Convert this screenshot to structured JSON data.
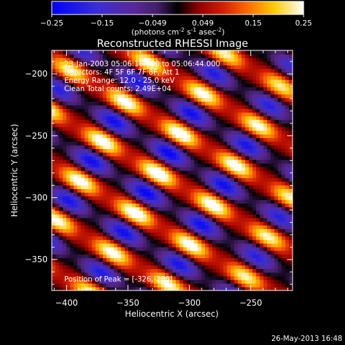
{
  "colorbar": {
    "ticks": [
      "-0.25",
      "-0.15",
      "-0.049",
      "0.049",
      "0.15",
      "0.25"
    ],
    "vmin": -0.25,
    "vmax": 0.25,
    "unit_parts": [
      "(photons cm",
      "-2",
      " s",
      "-1",
      " asec",
      "-2",
      ")"
    ]
  },
  "title": "Reconstructed RHESSI Image",
  "info_lines": [
    "23-Jan-2003 05:06:16.000 to 05:06:44.000",
    "Detectors: 4F 5F 6F 7F 8F, Att 1",
    "Energy Range: 12.0 - 25.0 keV",
    "Clean     Total counts: 2.49E+04"
  ],
  "peak_text": "Position of Peak = [-326,-280]",
  "timestamp": "26-May-2013 16:48",
  "chart_data": {
    "type": "heatmap",
    "title": "Reconstructed RHESSI Image",
    "xlabel": "Heliocentric X (arcsec)",
    "ylabel": "Heliocentric Y (arcsec)",
    "xlim": [
      -412,
      -216
    ],
    "ylim": [
      -375,
      -181
    ],
    "xticks": [
      -400,
      -350,
      -300,
      -250
    ],
    "yticks": [
      -350,
      -300,
      -250,
      -200
    ],
    "xtick_labels": [
      "−400",
      "−350",
      "−300",
      "−250"
    ],
    "ytick_labels": [
      "−350",
      "−300",
      "−250",
      "−200"
    ],
    "peak": {
      "x": -326,
      "y": -280
    },
    "color_range": [
      -0.25,
      0.25
    ],
    "colormap": [
      [
        0.0,
        "#0000ff"
      ],
      [
        0.18,
        "#3c2fd0"
      ],
      [
        0.33,
        "#5a2896"
      ],
      [
        0.42,
        "#431e66"
      ],
      [
        0.5,
        "#000000"
      ],
      [
        0.58,
        "#8c0000"
      ],
      [
        0.68,
        "#d21e00"
      ],
      [
        0.78,
        "#ff6e00"
      ],
      [
        0.88,
        "#ffc800"
      ],
      [
        1.0,
        "#ffffff"
      ]
    ]
  }
}
